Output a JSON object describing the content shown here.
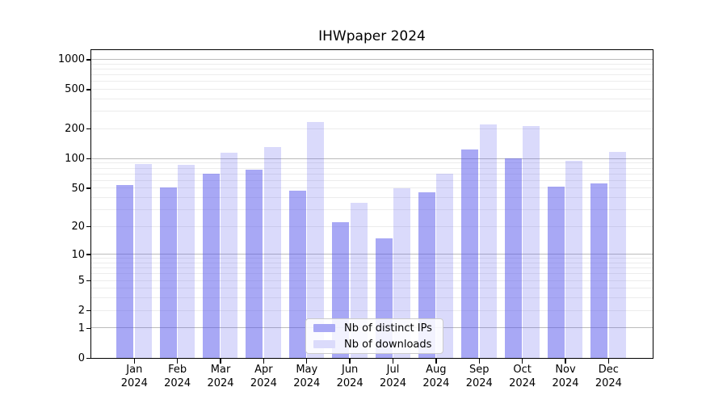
{
  "chart_data": {
    "type": "bar",
    "title": "IHWpaper 2024",
    "categories": [
      "Jan 2024",
      "Feb 2024",
      "Mar 2024",
      "Apr 2024",
      "May 2024",
      "Jun 2024",
      "Jul 2024",
      "Aug 2024",
      "Sep 2024",
      "Oct 2024",
      "Nov 2024",
      "Dec 2024"
    ],
    "series": [
      {
        "name": "Nb of distinct IPs",
        "color": "rgba(82,82,235,0.5)",
        "legend_color": "#a9a9f5",
        "values": [
          54,
          51,
          70,
          77,
          47,
          22,
          15,
          45,
          124,
          100,
          52,
          56
        ]
      },
      {
        "name": "Nb of downloads",
        "color": "rgba(82,82,235,0.21)",
        "legend_color": "#dbdbfb",
        "values": [
          88,
          86,
          115,
          130,
          235,
          35,
          50,
          70,
          220,
          215,
          95,
          118
        ]
      }
    ],
    "yscale": "log10(1+x)",
    "ylim": [
      0,
      1260
    ],
    "yticks": [
      1000,
      500,
      200,
      100,
      50,
      20,
      10,
      5,
      2,
      1,
      0
    ],
    "grid": {
      "major_values": [
        1,
        10,
        100,
        1000
      ],
      "minor_values": [
        2,
        3,
        4,
        5,
        6,
        7,
        8,
        9,
        20,
        30,
        40,
        50,
        60,
        70,
        80,
        90,
        200,
        300,
        400,
        500,
        600,
        700,
        800,
        900
      ],
      "major_color": "#bcbcbc",
      "minor_color": "#ececec"
    },
    "legend_position": "lower center",
    "xlabel": "",
    "ylabel": ""
  }
}
